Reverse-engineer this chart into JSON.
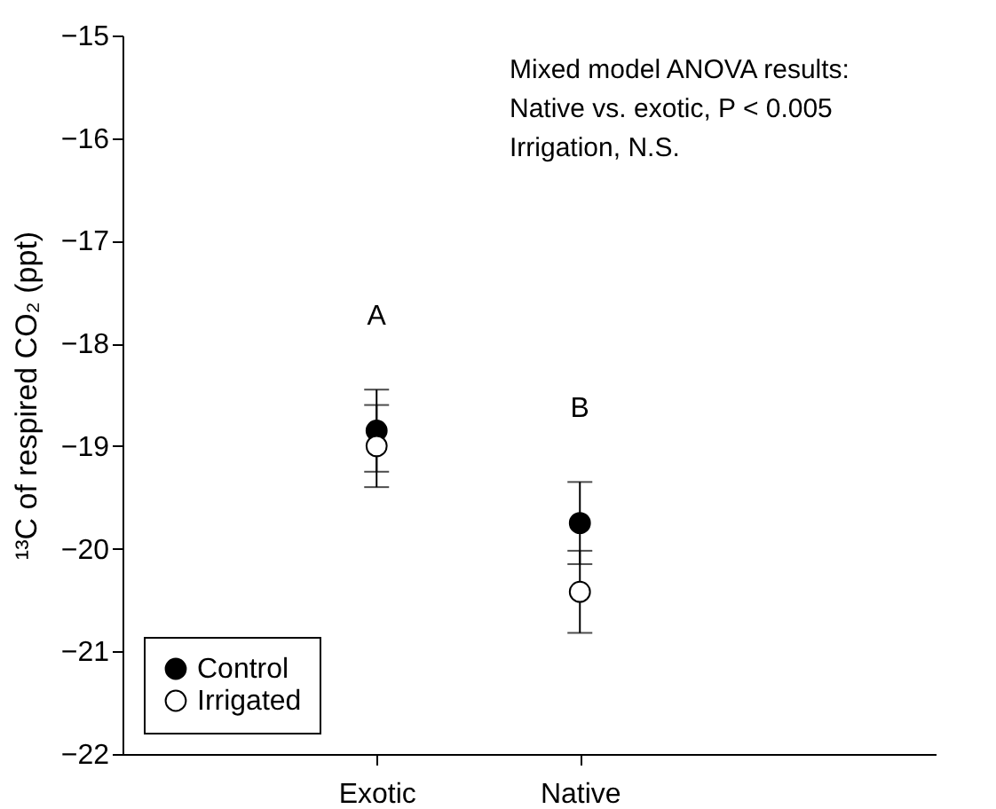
{
  "chart_data": {
    "type": "scatter",
    "ylabel": "¹³C of respired CO₂ (ppt)",
    "categories": [
      "Exotic",
      "Native"
    ],
    "series": [
      {
        "name": "Control",
        "color": "#000000",
        "values": [
          -18.85,
          -19.75
        ],
        "errors": [
          0.4,
          0.4
        ]
      },
      {
        "name": "Irrigated",
        "color": "#ffffff",
        "values": [
          -19.0,
          -20.42
        ],
        "errors": [
          0.4,
          0.4
        ]
      }
    ],
    "ylim": [
      -22,
      -15
    ],
    "yticks": [
      -22,
      -21,
      -20,
      -19,
      -18,
      -17,
      -16,
      -15
    ],
    "marker": "circle",
    "grid": false,
    "legend": "bottom left",
    "annotations": [
      "A",
      "B",
      "Mixed model ANOVA results:",
      "Native vs. exotic, P < 0.005",
      "Irrigation, N.S."
    ]
  }
}
